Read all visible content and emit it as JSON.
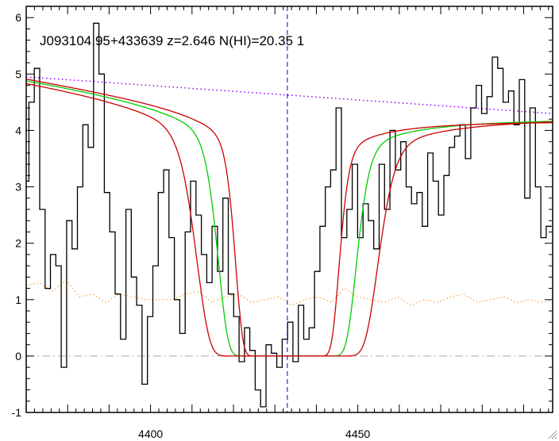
{
  "chart_data": {
    "type": "line",
    "title": "J093104.95+433639 z=2.646 N(HI)=20.35 1",
    "xlabel": "",
    "ylabel": "",
    "xlim": [
      4370,
      4497
    ],
    "ylim": [
      -1,
      6.2
    ],
    "x_ticks": [
      4400,
      4450
    ],
    "y_ticks": [
      -1,
      0,
      1,
      2,
      3,
      4,
      5,
      6
    ],
    "grid": false,
    "reference_lines": {
      "zero_level": 0,
      "absorber_center": 4433
    },
    "continuum": {
      "x": [
        4370,
        4497
      ],
      "y": [
        4.95,
        4.3
      ]
    },
    "dla_model": {
      "center": 4433,
      "profiles": [
        {
          "role": "best",
          "halfwidth": 8.0,
          "asymptote": 4.22
        },
        {
          "role": "upper",
          "halfwidth": 10.5,
          "asymptote": 4.25
        },
        {
          "role": "lower",
          "halfwidth": 6.0,
          "asymptote": 4.17
        }
      ]
    },
    "flux": {
      "x": [
        4370.0,
        4371.3,
        4372.6,
        4373.9,
        4375.2,
        4376.5,
        4377.8,
        4379.1,
        4380.4,
        4381.7,
        4383.0,
        4384.3,
        4385.6,
        4386.9,
        4388.2,
        4389.5,
        4390.8,
        4392.1,
        4393.4,
        4394.7,
        4396.0,
        4397.3,
        4398.6,
        4399.9,
        4401.2,
        4402.5,
        4403.8,
        4405.1,
        4406.4,
        4407.7,
        4409.0,
        4410.3,
        4411.6,
        4412.9,
        4414.2,
        4415.5,
        4416.8,
        4418.1,
        4419.4,
        4420.7,
        4422.0,
        4423.3,
        4424.6,
        4425.9,
        4427.2,
        4428.5,
        4429.8,
        4431.1,
        4432.4,
        4433.7,
        4435.0,
        4436.3,
        4437.6,
        4438.9,
        4440.2,
        4441.5,
        4442.8,
        4444.1,
        4445.4,
        4446.7,
        4448.0,
        4449.3,
        4450.6,
        4451.9,
        4453.2,
        4454.5,
        4455.8,
        4457.1,
        4458.4,
        4459.7,
        4461.0,
        4462.3,
        4463.6,
        4464.9,
        4466.2,
        4467.5,
        4468.8,
        4470.1,
        4471.4,
        4472.7,
        4474.0,
        4475.3,
        4476.6,
        4477.9,
        4479.2,
        4480.5,
        4481.8,
        4483.1,
        4484.4,
        4485.7,
        4487.0,
        4488.3,
        4489.6,
        4490.9,
        4492.2,
        4493.5,
        4494.8,
        4496.1
      ],
      "y": [
        3.1,
        4.5,
        5.1,
        2.6,
        1.2,
        1.8,
        1.6,
        -0.2,
        2.4,
        1.9,
        3.0,
        4.1,
        3.7,
        5.9,
        5.0,
        2.9,
        2.2,
        1.1,
        0.3,
        2.6,
        1.4,
        0.9,
        -0.5,
        0.7,
        1.6,
        2.9,
        3.3,
        2.1,
        1.0,
        0.4,
        2.2,
        3.1,
        2.5,
        1.8,
        1.3,
        2.3,
        1.5,
        2.8,
        1.1,
        0.7,
        -0.1,
        0.5,
        0.1,
        -0.6,
        -0.9,
        0.2,
        0.05,
        -0.2,
        0.3,
        0.6,
        -0.1,
        0.9,
        0.3,
        0.5,
        1.5,
        2.3,
        3.0,
        3.3,
        4.4,
        2.1,
        2.6,
        3.4,
        2.1,
        2.7,
        2.4,
        1.9,
        3.4,
        2.6,
        4.0,
        3.3,
        3.8,
        3.0,
        2.7,
        2.9,
        2.3,
        3.6,
        3.1,
        2.5,
        3.2,
        3.7,
        3.9,
        4.1,
        3.5,
        4.4,
        4.8,
        4.3,
        4.6,
        5.3,
        5.1,
        4.5,
        4.7,
        4.1,
        4.9,
        2.8,
        4.4,
        3.0,
        2.1,
        2.3
      ]
    },
    "noise": {
      "x": [
        4370.0,
        4373.2,
        4376.4,
        4379.6,
        4382.8,
        4386.0,
        4389.2,
        4392.4,
        4395.6,
        4398.8,
        4402.0,
        4405.2,
        4408.4,
        4411.6,
        4414.8,
        4418.0,
        4421.2,
        4424.4,
        4427.6,
        4430.8,
        4434.0,
        4437.2,
        4440.4,
        4443.6,
        4446.8,
        4450.0,
        4453.2,
        4456.4,
        4459.6,
        4462.8,
        4466.0,
        4469.2,
        4472.4,
        4475.6,
        4478.8,
        4482.0,
        4485.2,
        4488.4,
        4491.6,
        4494.8,
        4497.0
      ],
      "y": [
        1.25,
        1.3,
        1.15,
        1.35,
        1.05,
        1.1,
        0.95,
        1.1,
        1.05,
        1.0,
        1.0,
        1.0,
        1.1,
        1.15,
        0.95,
        1.05,
        1.1,
        0.95,
        1.0,
        1.05,
        0.9,
        1.0,
        1.05,
        0.95,
        1.2,
        1.05,
        1.0,
        0.95,
        1.05,
        0.9,
        1.0,
        0.95,
        1.05,
        1.1,
        0.95,
        1.0,
        1.05,
        0.95,
        1.0,
        0.95,
        1.0
      ]
    },
    "colors": {
      "axes": "#000000",
      "flux": "#000000",
      "best_fit": "#00cc00",
      "bounds": "#cc0000",
      "continuum": "#9900ff",
      "noise": "#ff9933",
      "zero_line": "#aaaaaa",
      "center_line": "#0000cc"
    }
  }
}
